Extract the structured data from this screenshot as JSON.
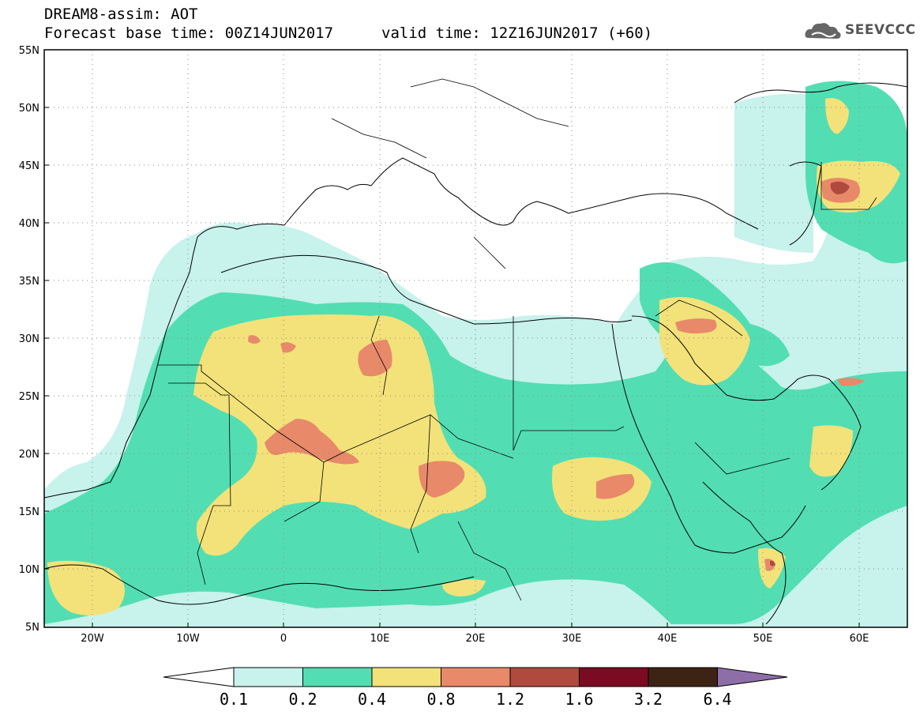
{
  "header": {
    "title": "DREAM8-assim: AOT",
    "base_time": "Forecast base time: 00Z14JUN2017",
    "valid_time": "valid time: 12Z16JUN2017 (+60)",
    "logo_text": "SEEVCCC"
  },
  "map": {
    "lat_labels": [
      "55N",
      "50N",
      "45N",
      "40N",
      "35N",
      "30N",
      "25N",
      "20N",
      "15N",
      "10N",
      "5N"
    ],
    "lon_labels": [
      "20W",
      "10W",
      "0",
      "10E",
      "20E",
      "30E",
      "40E",
      "50E",
      "60E"
    ]
  },
  "colorbar": {
    "labels": [
      "0.1",
      "0.2",
      "0.4",
      "0.8",
      "1.2",
      "1.6",
      "3.2",
      "6.4"
    ],
    "colors": [
      "#c8f2ec",
      "#52deb2",
      "#f3e27a",
      "#e8896a",
      "#b04a3e",
      "#7a0b22",
      "#3d2314",
      "#8e6ea8"
    ]
  }
}
